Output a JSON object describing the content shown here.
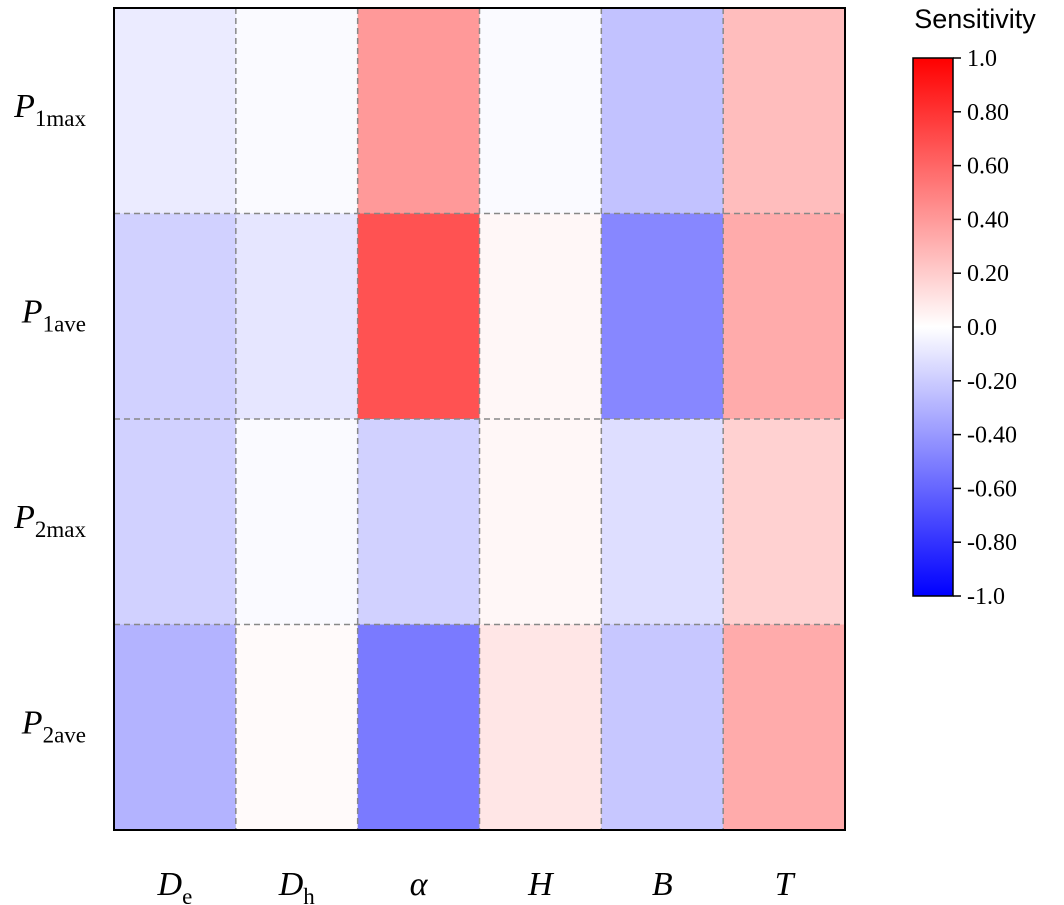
{
  "chart_data": {
    "type": "heatmap",
    "colorbar_title": "Sensitivity",
    "colormap": {
      "low": "#0000ff",
      "mid": "#ffffff",
      "high": "#ff0000"
    },
    "value_range": [
      -1.0,
      1.0
    ],
    "colorbar_ticks": [
      "1.0",
      "0.80",
      "0.60",
      "0.40",
      "0.20",
      "0.0",
      "-0.20",
      "-0.40",
      "-0.60",
      "-0.80",
      "-1.0"
    ],
    "columns": [
      {
        "symbol": "D",
        "sub": "e"
      },
      {
        "symbol": "D",
        "sub": "h"
      },
      {
        "symbol": "α",
        "sub": ""
      },
      {
        "symbol": "H",
        "sub": ""
      },
      {
        "symbol": "B",
        "sub": ""
      },
      {
        "symbol": "T",
        "sub": ""
      }
    ],
    "rows": [
      {
        "symbol": "P",
        "sub": "1max"
      },
      {
        "symbol": "P",
        "sub": "1ave"
      },
      {
        "symbol": "P",
        "sub": "2max"
      },
      {
        "symbol": "P",
        "sub": "2ave"
      }
    ],
    "values": [
      [
        -0.08,
        -0.02,
        0.4,
        -0.02,
        -0.24,
        0.26
      ],
      [
        -0.18,
        -0.1,
        0.68,
        0.03,
        -0.47,
        0.33
      ],
      [
        -0.18,
        -0.02,
        -0.18,
        0.03,
        -0.13,
        0.18
      ],
      [
        -0.3,
        0.02,
        -0.52,
        0.1,
        -0.22,
        0.33
      ]
    ],
    "grid_lines": "dashed"
  }
}
